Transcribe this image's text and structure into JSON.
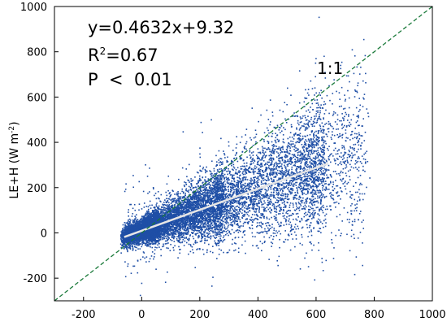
{
  "chart_data": {
    "type": "scatter",
    "title": "",
    "xlabel": "",
    "ylabel": {
      "prefix": "LE+H (W m",
      "superscript": "-2",
      "suffix": ")"
    },
    "xlim": [
      -300,
      1000
    ],
    "ylim": [
      -300,
      1000
    ],
    "xticks": [
      -200,
      0,
      200,
      400,
      600,
      800,
      1000
    ],
    "yticks": [
      -200,
      0,
      200,
      400,
      600,
      800,
      1000
    ],
    "grid": false,
    "point_count_estimate": 12000,
    "scatter_color": "#1f4fa6",
    "fit_line": {
      "slope": 0.4632,
      "intercept": 9.32,
      "x_range": [
        -60,
        640
      ],
      "color": "#e6e6e6",
      "label": "y=0.4632x+9.32"
    },
    "one_to_one_line": {
      "label": "1:1",
      "color": "#1a7a3a",
      "style": "dashed"
    },
    "stats": {
      "r2_prefix": "R",
      "r2_sup": "2",
      "r2_value": "=0.67",
      "p_text": "P  <  0.01"
    }
  }
}
